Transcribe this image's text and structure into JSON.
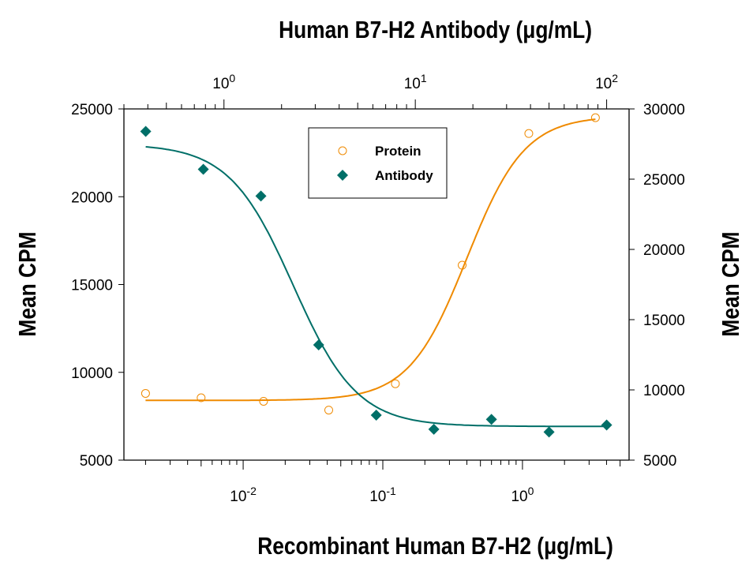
{
  "chart_data": {
    "type": "scatter",
    "top_title": "Human B7-H2 Antibody (μg/mL)",
    "xlabel": "Recombinant Human B7-H2 (μg/mL)",
    "ylabel_left": "Mean CPM",
    "ylabel_right": "Mean CPM",
    "x_bottom": {
      "scale": "log",
      "range": [
        0.0014,
        5.8
      ],
      "ticks": [
        {
          "base": "10",
          "exp": "-2",
          "value": 0.01
        },
        {
          "base": "10",
          "exp": "-1",
          "value": 0.1
        },
        {
          "base": "10",
          "exp": "0",
          "value": 1
        }
      ]
    },
    "x_top": {
      "scale": "log",
      "range": [
        0.3,
        131
      ],
      "ticks": [
        {
          "base": "10",
          "exp": "0",
          "value": 1
        },
        {
          "base": "10",
          "exp": "1",
          "value": 10
        },
        {
          "base": "10",
          "exp": "2",
          "value": 100
        }
      ]
    },
    "y_left": {
      "range": [
        5000,
        25000
      ],
      "ticks": [
        "5000",
        "10000",
        "15000",
        "20000",
        "25000"
      ]
    },
    "y_right": {
      "range": [
        5000,
        30000
      ],
      "ticks": [
        "5000",
        "10000",
        "15000",
        "20000",
        "25000",
        "30000"
      ]
    },
    "grid": false,
    "legend": {
      "placement": "top-center",
      "entries": [
        "Protein",
        "Antibody"
      ]
    },
    "series": [
      {
        "name": "Protein",
        "x_axis": "bottom",
        "y_axis": "left",
        "color": "#ef8a00",
        "marker": "open-circle",
        "x": [
          0.002,
          0.005,
          0.014,
          0.041,
          0.123,
          0.37,
          1.11,
          3.33
        ],
        "y": [
          8800,
          8550,
          8350,
          7850,
          9350,
          16100,
          23600,
          24500
        ]
      },
      {
        "name": "Antibody",
        "x_axis": "top",
        "y_axis": "right",
        "color": "#006f68",
        "marker": "filled-diamond",
        "x": [
          0.39,
          0.78,
          1.56,
          3.125,
          6.25,
          12.5,
          25,
          50,
          100
        ],
        "y": [
          28400,
          25700,
          23800,
          13200,
          8200,
          7200,
          7900,
          7000,
          7500
        ]
      }
    ]
  }
}
